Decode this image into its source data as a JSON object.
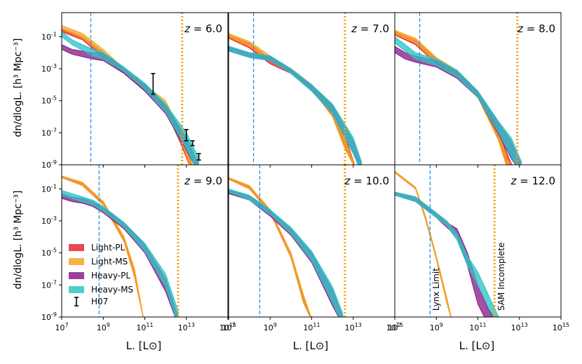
{
  "chart_data": {
    "type": "line",
    "title": "",
    "xlabel": "L. [L⊙]",
    "ylabel": "dn/dlogL. [h³ Mpc⁻³]",
    "x_scale": "log",
    "y_scale": "log",
    "xlim_log10": [
      7,
      15
    ],
    "ylim_log10": [
      -9,
      0.5
    ],
    "x_tick_labels": [
      "10^7",
      "10^9",
      "10^11",
      "10^13",
      "10^15"
    ],
    "y_tick_labels": [
      "10^-9",
      "10^-7",
      "10^-5",
      "10^-3",
      "10^-1"
    ],
    "colors": {
      "Light-PL": "#e8272f",
      "Light-MS": "#f5a623",
      "Heavy-PL": "#8b1e8b",
      "Heavy-MS": "#2ec4c4",
      "H07": "#000000",
      "lynx_line": "#2b8fe8",
      "sam_line": "#f5a010"
    },
    "legend": {
      "location": "lower-left of panel z=9.0",
      "entries": [
        "Light-PL",
        "Light-MS",
        "Heavy-PL",
        "Heavy-MS",
        "H07"
      ]
    },
    "annotations": {
      "lynx": "Lynx Limit",
      "sam": "SAM Incomplete"
    },
    "panels": [
      {
        "label": "z = 6.0",
        "z_text": "6.0",
        "lynx_log10L": 8.4,
        "sam_log10L": 12.8,
        "series": [
          {
            "name": "Light-PL",
            "log10L": [
              7,
              8,
              9,
              10,
              11,
              12,
              12.7,
              13.3
            ],
            "log10phi_upper": [
              -0.5,
              -1.0,
              -2.0,
              -3.0,
              -4.1,
              -5.2,
              -7.0,
              -9.0
            ],
            "log10phi_lower": [
              -0.7,
              -1.2,
              -2.3,
              -3.3,
              -4.4,
              -5.6,
              -7.6,
              -9.5
            ]
          },
          {
            "name": "Light-MS",
            "log10L": [
              7,
              8,
              9,
              10,
              11,
              12,
              12.7,
              13.3
            ],
            "log10phi_upper": [
              -0.3,
              -0.8,
              -1.8,
              -3.0,
              -4.0,
              -5.0,
              -6.8,
              -9.0
            ],
            "log10phi_lower": [
              -0.5,
              -1.1,
              -2.1,
              -3.2,
              -4.3,
              -5.4,
              -7.3,
              -9.5
            ]
          },
          {
            "name": "Heavy-PL",
            "log10L": [
              7,
              7.5,
              8.5,
              9,
              10,
              11,
              12,
              13,
              13.6
            ],
            "log10phi_upper": [
              -1.5,
              -1.8,
              -2.0,
              -2.0,
              -3.0,
              -4.0,
              -5.3,
              -7.3,
              -9.0
            ],
            "log10phi_lower": [
              -1.8,
              -2.1,
              -2.4,
              -2.5,
              -3.3,
              -4.4,
              -5.8,
              -8.1,
              -9.5
            ]
          },
          {
            "name": "Heavy-MS",
            "log10L": [
              7,
              7.5,
              8.5,
              9,
              10,
              11,
              12,
              13,
              13.6
            ],
            "log10phi_upper": [
              -0.7,
              -1.2,
              -1.8,
              -2.0,
              -2.9,
              -3.9,
              -5.2,
              -7.0,
              -8.6
            ],
            "log10phi_lower": [
              -1.0,
              -1.5,
              -2.2,
              -2.4,
              -3.2,
              -4.3,
              -5.7,
              -8.0,
              -9.5
            ]
          }
        ],
        "h07_points": [
          {
            "log10L": 11.4,
            "log10phi_low": -4.6,
            "log10phi_high": -3.3
          },
          {
            "log10L": 13.0,
            "log10phi_low": -7.5,
            "log10phi_high": -6.8
          },
          {
            "log10L": 13.3,
            "log10phi_low": -7.8,
            "log10phi_high": -7.5
          },
          {
            "log10L": 13.6,
            "log10phi_low": -8.7,
            "log10phi_high": -8.3
          }
        ]
      },
      {
        "label": "z = 7.0",
        "z_text": "7.0",
        "lynx_log10L": 8.2,
        "sam_log10L": 12.6,
        "series": [
          {
            "name": "Light-PL",
            "log10L": [
              7,
              8,
              9,
              10,
              11,
              12,
              12.6,
              13.2
            ],
            "log10phi_upper": [
              -0.9,
              -1.4,
              -2.4,
              -3.0,
              -4.0,
              -5.4,
              -7.2,
              -9.5
            ],
            "log10phi_lower": [
              -1.1,
              -1.7,
              -2.7,
              -3.3,
              -4.3,
              -5.9,
              -7.9,
              -9.5
            ]
          },
          {
            "name": "Light-MS",
            "log10L": [
              7,
              8,
              9,
              10,
              11,
              12,
              12.6,
              13.2
            ],
            "log10phi_upper": [
              -0.8,
              -1.3,
              -2.2,
              -3.0,
              -4.0,
              -5.5,
              -7.4,
              -9.5
            ],
            "log10phi_lower": [
              -1.0,
              -1.6,
              -2.5,
              -3.3,
              -4.3,
              -6.0,
              -8.0,
              -9.5
            ]
          },
          {
            "name": "Heavy-PL",
            "log10L": [
              7,
              8,
              9,
              10,
              11,
              12,
              13,
              13.4
            ],
            "log10phi_upper": [
              -1.6,
              -2.0,
              -2.2,
              -3.0,
              -4.0,
              -5.3,
              -7.5,
              -9.0
            ],
            "log10phi_lower": [
              -1.9,
              -2.3,
              -2.5,
              -3.3,
              -4.4,
              -5.8,
              -8.3,
              -9.5
            ]
          },
          {
            "name": "Heavy-MS",
            "log10L": [
              7,
              8,
              9,
              10,
              11,
              12,
              13,
              13.4
            ],
            "log10phi_upper": [
              -1.6,
              -2.0,
              -2.2,
              -3.0,
              -4.0,
              -5.2,
              -7.3,
              -8.8
            ],
            "log10phi_lower": [
              -1.9,
              -2.3,
              -2.5,
              -3.3,
              -4.4,
              -5.8,
              -8.3,
              -9.5
            ]
          }
        ],
        "h07_points": []
      },
      {
        "label": "z = 8.0",
        "z_text": "8.0",
        "lynx_log10L": 8.2,
        "sam_log10L": 12.9,
        "series": [
          {
            "name": "Light-PL",
            "log10L": [
              7,
              8,
              9,
              10,
              11,
              12,
              12.4,
              12.8
            ],
            "log10phi_upper": [
              -0.7,
              -1.2,
              -2.4,
              -3.1,
              -4.4,
              -6.8,
              -8.3,
              -9.5
            ],
            "log10phi_lower": [
              -0.9,
              -1.5,
              -2.7,
              -3.4,
              -4.8,
              -7.4,
              -9.0,
              -9.5
            ]
          },
          {
            "name": "Light-MS",
            "log10L": [
              7,
              8,
              9,
              10,
              11,
              12,
              12.4,
              12.8
            ],
            "log10phi_upper": [
              -0.6,
              -1.1,
              -2.3,
              -3.1,
              -4.4,
              -7.0,
              -8.6,
              -9.5
            ],
            "log10phi_lower": [
              -0.8,
              -1.4,
              -2.6,
              -3.4,
              -4.8,
              -7.5,
              -9.2,
              -9.5
            ]
          },
          {
            "name": "Heavy-PL",
            "log10L": [
              7,
              7.5,
              8,
              9,
              10,
              11,
              12,
              12.6,
              13.1
            ],
            "log10phi_upper": [
              -1.6,
              -2.0,
              -2.2,
              -2.5,
              -3.2,
              -4.4,
              -6.4,
              -7.5,
              -9.0
            ],
            "log10phi_lower": [
              -2.0,
              -2.4,
              -2.6,
              -2.9,
              -3.6,
              -4.8,
              -7.1,
              -8.6,
              -9.5
            ]
          },
          {
            "name": "Heavy-MS",
            "log10L": [
              7,
              7.5,
              8,
              9,
              10,
              11,
              12,
              12.6,
              13.1
            ],
            "log10phi_upper": [
              -1.0,
              -1.5,
              -2.0,
              -2.4,
              -3.1,
              -4.4,
              -6.3,
              -7.3,
              -8.8
            ],
            "log10phi_lower": [
              -1.4,
              -1.9,
              -2.4,
              -2.8,
              -3.5,
              -4.8,
              -7.0,
              -8.5,
              -9.5
            ]
          }
        ],
        "h07_points": []
      },
      {
        "label": "z = 9.0",
        "z_text": "9.0",
        "lynx_log10L": 8.8,
        "sam_log10L": 12.6,
        "series": [
          {
            "name": "Light-PL",
            "log10L": [
              7,
              8,
              9,
              10,
              10.5,
              11
            ],
            "log10phi_upper": [
              -0.2,
              -0.6,
              -1.8,
              -4.0,
              -6.0,
              -9.5
            ],
            "log10phi_lower": [
              -0.3,
              -0.8,
              -2.0,
              -4.3,
              -6.5,
              -9.5
            ]
          },
          {
            "name": "Light-MS",
            "log10L": [
              7,
              8,
              9,
              10,
              10.5,
              11
            ],
            "log10phi_upper": [
              -0.2,
              -0.6,
              -1.8,
              -4.0,
              -6.0,
              -9.5
            ],
            "log10phi_lower": [
              -0.3,
              -0.8,
              -2.0,
              -4.3,
              -6.5,
              -9.5
            ]
          },
          {
            "name": "Heavy-PL",
            "log10L": [
              7,
              7.5,
              8,
              8.5,
              9,
              10,
              11,
              12,
              12.6
            ],
            "log10phi_upper": [
              -1.3,
              -1.5,
              -1.6,
              -1.8,
              -2.2,
              -3.1,
              -4.5,
              -6.6,
              -9.0
            ],
            "log10phi_lower": [
              -1.6,
              -1.8,
              -1.9,
              -2.1,
              -2.5,
              -3.5,
              -5.0,
              -7.4,
              -9.5
            ]
          },
          {
            "name": "Heavy-MS",
            "log10L": [
              7,
              7.5,
              8,
              8.5,
              9,
              10,
              11,
              12,
              12.6
            ],
            "log10phi_upper": [
              -1.1,
              -1.3,
              -1.5,
              -1.7,
              -2.1,
              -3.1,
              -4.4,
              -6.3,
              -8.6
            ],
            "log10phi_lower": [
              -1.4,
              -1.6,
              -1.8,
              -2.0,
              -2.4,
              -3.4,
              -4.9,
              -7.1,
              -9.5
            ]
          }
        ],
        "h07_points": []
      },
      {
        "label": "z = 10.0",
        "z_text": "10.0",
        "lynx_log10L": 8.5,
        "sam_log10L": 12.6,
        "series": [
          {
            "name": "Light-PL",
            "log10L": [
              7,
              8,
              9,
              10,
              10.6,
              11.1
            ],
            "log10phi_upper": [
              -0.3,
              -0.8,
              -2.3,
              -5.0,
              -7.6,
              -9.5
            ],
            "log10phi_lower": [
              -0.4,
              -1.0,
              -2.5,
              -5.3,
              -8.1,
              -9.5
            ]
          },
          {
            "name": "Light-MS",
            "log10L": [
              7,
              8,
              9,
              10,
              10.6,
              11.1
            ],
            "log10phi_upper": [
              -0.3,
              -0.8,
              -2.3,
              -5.0,
              -7.6,
              -9.5
            ],
            "log10phi_lower": [
              -0.4,
              -1.0,
              -2.5,
              -5.3,
              -8.1,
              -9.5
            ]
          },
          {
            "name": "Heavy-PL",
            "log10L": [
              7,
              8,
              9,
              10,
              11,
              12,
              12.5
            ],
            "log10phi_upper": [
              -1.1,
              -1.4,
              -2.4,
              -3.5,
              -5.0,
              -7.3,
              -9.0
            ],
            "log10phi_lower": [
              -1.3,
              -1.7,
              -2.7,
              -3.9,
              -5.6,
              -8.3,
              -9.5
            ]
          },
          {
            "name": "Heavy-MS",
            "log10L": [
              7,
              8,
              9,
              10,
              11,
              12,
              12.5
            ],
            "log10phi_upper": [
              -1.0,
              -1.4,
              -2.3,
              -3.4,
              -4.9,
              -7.1,
              -8.8
            ],
            "log10phi_lower": [
              -1.2,
              -1.7,
              -2.6,
              -3.8,
              -5.5,
              -8.1,
              -9.5
            ]
          }
        ],
        "h07_points": []
      },
      {
        "label": "z = 12.0",
        "z_text": "12.0",
        "lynx_log10L": 8.7,
        "sam_log10L": 11.8,
        "series": [
          {
            "name": "Light-PL",
            "log10L": [
              7,
              8,
              8.5,
              9,
              9.5,
              9.8
            ],
            "log10phi_upper": [
              0.1,
              -0.9,
              -2.8,
              -5.2,
              -7.8,
              -9.5
            ],
            "log10phi_lower": [
              0.0,
              -1.0,
              -3.0,
              -5.4,
              -8.1,
              -9.5
            ]
          },
          {
            "name": "Light-MS",
            "log10L": [
              7,
              8,
              8.5,
              9,
              9.5,
              9.8
            ],
            "log10phi_upper": [
              0.1,
              -0.9,
              -2.8,
              -5.2,
              -7.8,
              -9.5
            ],
            "log10phi_lower": [
              0.0,
              -1.0,
              -3.0,
              -5.4,
              -8.1,
              -9.5
            ]
          },
          {
            "name": "Heavy-PL",
            "log10L": [
              7,
              8,
              9,
              9.5,
              10,
              10.5,
              11,
              11.5,
              12
            ],
            "log10phi_upper": [
              -1.2,
              -1.5,
              -2.5,
              -3.1,
              -3.5,
              -5.0,
              -7.0,
              -8.5,
              -9.5
            ],
            "log10phi_lower": [
              -1.4,
              -1.8,
              -2.8,
              -3.4,
              -4.0,
              -5.8,
              -8.2,
              -9.5,
              -9.5
            ]
          },
          {
            "name": "Heavy-MS",
            "log10L": [
              7,
              8,
              9,
              9.5,
              10,
              10.5,
              11,
              11.5,
              12
            ],
            "log10phi_upper": [
              -1.2,
              -1.5,
              -2.5,
              -3.0,
              -3.8,
              -5.2,
              -6.2,
              -7.6,
              -9.0
            ],
            "log10phi_lower": [
              -1.4,
              -1.8,
              -2.8,
              -3.3,
              -4.2,
              -5.8,
              -7.0,
              -8.4,
              -9.5
            ]
          }
        ],
        "h07_points": []
      }
    ]
  }
}
